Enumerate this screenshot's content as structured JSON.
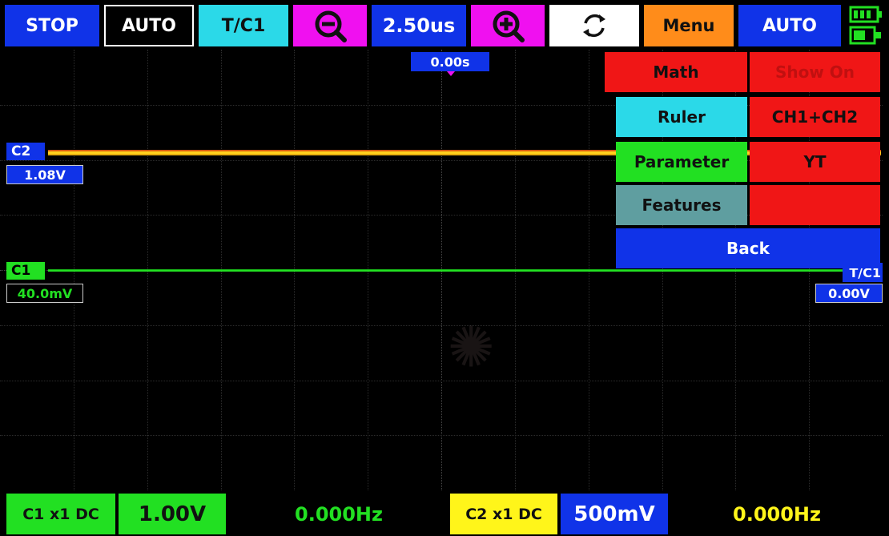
{
  "topbar": {
    "stop_label": "STOP",
    "auto_label": "AUTO",
    "trigger_source_label": "T/C1",
    "timebase_label": "2.50us",
    "menu_label": "Menu",
    "auto_mode_label": "AUTO"
  },
  "screen": {
    "time_offset": "0.00s",
    "ch2": {
      "tag": "C2",
      "offset": "1.08V",
      "color": "#ffd21e"
    },
    "ch1": {
      "tag": "C1",
      "offset": "40.0mV",
      "color": "#22e022"
    },
    "trigger": {
      "tag": "T/C1",
      "level": "0.00V"
    }
  },
  "menu": {
    "math": "Math",
    "show_on": "Show On",
    "ruler": "Ruler",
    "ch1_ch2": "CH1+CH2",
    "parameter": "Parameter",
    "yt": "YT",
    "features": "Features",
    "blank": "",
    "back": "Back"
  },
  "bottombar": {
    "ch1_coupling": "C1 x1 DC",
    "ch1_volts_div": "1.00V",
    "ch1_freq": "0.000Hz",
    "ch2_coupling": "C2 x1 DC",
    "ch2_volts_div": "500mV",
    "ch2_freq": "0.000Hz"
  },
  "icons": [
    "zoom-out-icon",
    "zoom-in-icon",
    "refresh-icon",
    "battery-icon"
  ],
  "colors": {
    "blue": "#1033e8",
    "cyan": "#2bd9e8",
    "magenta": "#f010f0",
    "orange": "#ff8c1a",
    "red": "#f01616",
    "green": "#22e022",
    "yellow": "#fff51a",
    "teal_gray": "#5f9ea0"
  }
}
